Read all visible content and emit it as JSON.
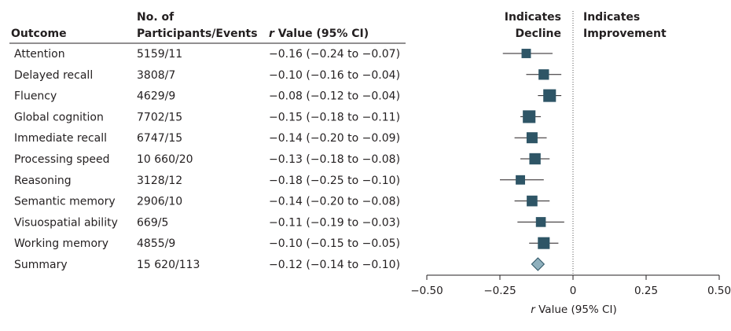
{
  "chart_data": {
    "type": "forest",
    "columns": {
      "outcome": "Outcome",
      "participants_line1": "No. of",
      "participants_line2": "Participants/Events",
      "r_italic": "r",
      "r_rest": " Value (95% CI)"
    },
    "direction_labels": {
      "left_line1": "Indicates",
      "left_line2": "Decline",
      "right_line1": "Indicates",
      "right_line2": "Improvement"
    },
    "rows": [
      {
        "outcome": "Attention",
        "participants": "5159/11",
        "ci_text": "−0.16 (−0.24 to −0.07)",
        "r": -0.16,
        "lo": -0.24,
        "hi": -0.07,
        "weight": 0.7
      },
      {
        "outcome": "Delayed recall",
        "participants": "3808/7",
        "ci_text": "−0.10 (−0.16 to −0.04)",
        "r": -0.1,
        "lo": -0.16,
        "hi": -0.04,
        "weight": 0.9
      },
      {
        "outcome": "Fluency",
        "participants": "4629/9",
        "ci_text": "−0.08 (−0.12 to −0.04)",
        "r": -0.08,
        "lo": -0.12,
        "hi": -0.04,
        "weight": 1.3
      },
      {
        "outcome": "Global cognition",
        "participants": "7702/15",
        "ci_text": "−0.15 (−0.18 to −0.11)",
        "r": -0.15,
        "lo": -0.18,
        "hi": -0.11,
        "weight": 1.3
      },
      {
        "outcome": "Immediate recall",
        "participants": "6747/15",
        "ci_text": "−0.14 (−0.20 to −0.09)",
        "r": -0.14,
        "lo": -0.2,
        "hi": -0.09,
        "weight": 1.0
      },
      {
        "outcome": "Processing speed",
        "participants": "10 660/20",
        "ci_text": "−0.13 (−0.18 to −0.08)",
        "r": -0.13,
        "lo": -0.18,
        "hi": -0.08,
        "weight": 1.05
      },
      {
        "outcome": "Reasoning",
        "participants": "3128/12",
        "ci_text": "−0.18 (−0.25 to −0.10)",
        "r": -0.18,
        "lo": -0.25,
        "hi": -0.1,
        "weight": 0.7
      },
      {
        "outcome": "Semantic memory",
        "participants": "2906/10",
        "ci_text": "−0.14 (−0.20 to −0.08)",
        "r": -0.14,
        "lo": -0.2,
        "hi": -0.08,
        "weight": 0.95
      },
      {
        "outcome": "Visuospatial ability",
        "participants": "669/5",
        "ci_text": "−0.11 (−0.19 to −0.03)",
        "r": -0.11,
        "lo": -0.19,
        "hi": -0.03,
        "weight": 0.8
      },
      {
        "outcome": "Working memory",
        "participants": "4855/9",
        "ci_text": "−0.10 (−0.15 to −0.05)",
        "r": -0.1,
        "lo": -0.15,
        "hi": -0.05,
        "weight": 1.15
      }
    ],
    "summary": {
      "outcome": "Summary",
      "participants": "15 620/113",
      "ci_text": "−0.12 (−0.14 to −0.10)",
      "r": -0.12,
      "lo": -0.14,
      "hi": -0.1
    },
    "xlim": [
      -0.5,
      0.5
    ],
    "xticks": [
      -0.5,
      -0.25,
      0,
      0.25,
      0.5
    ],
    "xtick_labels": [
      "−0.50",
      "−0.25",
      "0",
      "0.25",
      "0.50"
    ],
    "xlabel_italic": "r",
    "xlabel_rest": " Value (95% CI)",
    "reference_line": 0,
    "colors": {
      "marker": "#2e5566",
      "summary_fill": "#8fb0bd",
      "summary_stroke": "#2e5566",
      "line": "#231f20",
      "ref": "#555555"
    }
  }
}
